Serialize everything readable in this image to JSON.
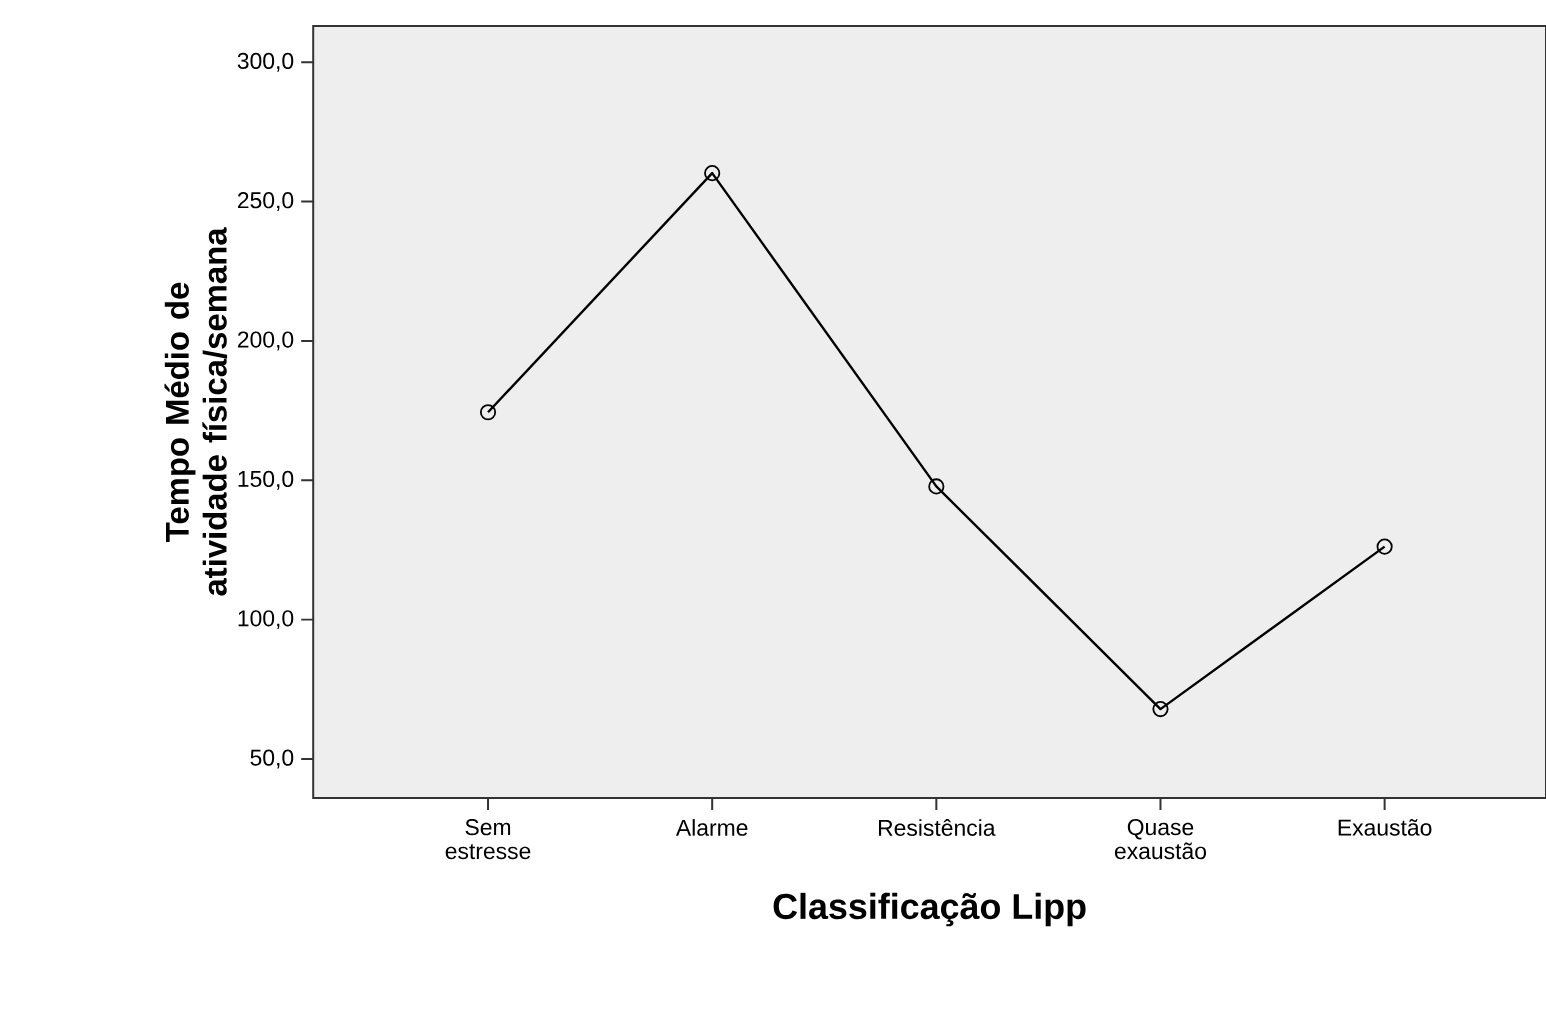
{
  "chart_data": {
    "type": "line",
    "xlabel": "Classificação Lipp",
    "ylabel": "Tempo Médio de atividade física/semana",
    "categories": [
      "Sem estresse",
      "Alarme",
      "Resistência",
      "Quase exaustão",
      "Exaustão"
    ],
    "series": [
      {
        "color": "#000000",
        "values": [
          174.4,
          260.2,
          147.8,
          67.9,
          126.2
        ]
      }
    ],
    "ylim": [
      36,
      313
    ],
    "yticks": [
      {
        "value": 50,
        "label": "50,0"
      },
      {
        "value": 100,
        "label": "100,0"
      },
      {
        "value": 150,
        "label": "150,0"
      },
      {
        "value": 200,
        "label": "200,0"
      },
      {
        "value": 250,
        "label": "250,0"
      },
      {
        "value": 300,
        "label": "300,0"
      }
    ],
    "marker": "circle",
    "line_style": "solid"
  }
}
